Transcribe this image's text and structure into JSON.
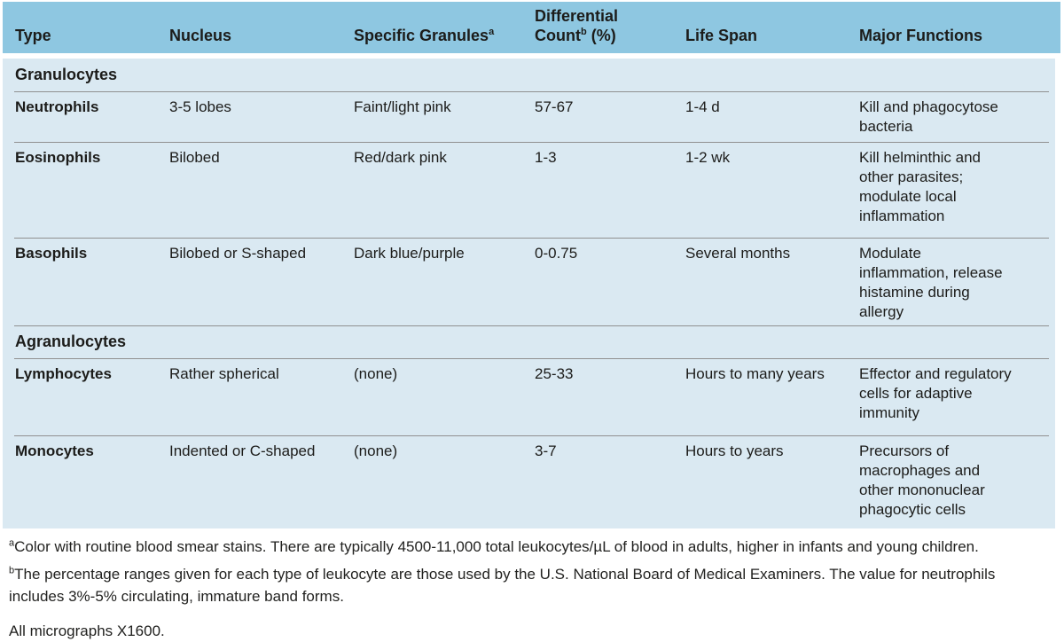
{
  "table": {
    "headers": {
      "type": "Type",
      "nucleus": "Nucleus",
      "granules": "Specific Granules",
      "granules_sup": "a",
      "count_line1": "Differential",
      "count_line2": "Count",
      "count_sup": "b",
      "count_suffix": " (%)",
      "lifespan": "Life Span",
      "functions": "Major Functions"
    },
    "sections": [
      {
        "name": "Granulocytes",
        "rows": [
          {
            "type": "Neutrophils",
            "nucleus": "3-5 lobes",
            "granules": "Faint/light pink",
            "count": "57-67",
            "lifespan": "1-4 d",
            "functions": "Kill and phagocytose\nbacteria"
          },
          {
            "type": "Eosinophils",
            "nucleus": "Bilobed",
            "granules": "Red/dark pink",
            "count": "1-3",
            "lifespan": "1-2 wk",
            "functions": "Kill helminthic and\nother parasites;\nmodulate local\ninflammation"
          },
          {
            "type": "Basophils",
            "nucleus": "Bilobed or S-shaped",
            "granules": "Dark blue/purple",
            "count": "0-0.75",
            "lifespan": "Several months",
            "functions": "Modulate\ninflammation, release\nhistamine during\nallergy"
          }
        ]
      },
      {
        "name": "Agranulocytes",
        "rows": [
          {
            "type": "Lymphocytes",
            "nucleus": "Rather spherical",
            "granules": "(none)",
            "count": "25-33",
            "lifespan": "Hours to many years",
            "functions": "Effector and regulatory\ncells for adaptive\nimmunity"
          },
          {
            "type": "Monocytes",
            "nucleus": "Indented or C-shaped",
            "granules": "(none)",
            "count": "3-7",
            "lifespan": "Hours to years",
            "functions": "Precursors of\nmacrophages and\nother mononuclear\nphagocytic cells"
          }
        ]
      }
    ]
  },
  "footnotes": {
    "a_sup": "a",
    "a_text": "Color with routine blood smear stains. There are typically 4500-11,000 total leukocytes/µL of blood in adults, higher in infants and young children.",
    "b_sup": "b",
    "b_text": "The percentage ranges given for each type of leukocyte are those used by the U.S. National Board of Medical Examiners. The value for neutrophils\nincludes 3%-5% circulating, immature band forms.",
    "micrographs": "All micrographs X1600."
  },
  "colors": {
    "header_bg": "#8ec7e1",
    "body_bg": "#dae9f2",
    "rule": "#909090",
    "text": "#1c1c1a"
  }
}
